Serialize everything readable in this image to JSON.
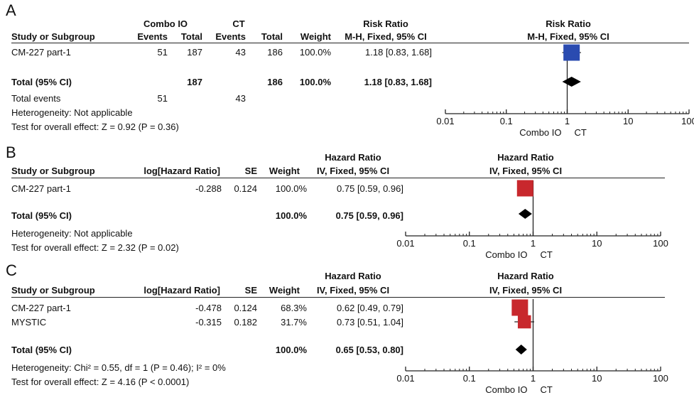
{
  "panels": [
    {
      "letter": "A",
      "header": {
        "group1": "Combo IO",
        "group2": "CT",
        "study": "Study or Subgroup",
        "events1": "Events",
        "total1": "Total",
        "events2": "Events",
        "total2": "Total",
        "weight": "Weight",
        "effect_top": "Risk Ratio",
        "effect_bottom": "M-H, Fixed, 95% CI",
        "plot_top": "Risk Ratio",
        "plot_bottom": "M-H, Fixed, 95% CI"
      },
      "rows": [
        {
          "name": "CM-227 part-1",
          "events1": "51",
          "total1": "187",
          "events2": "43",
          "total2": "186",
          "weight": "100.0%",
          "ci": "1.18 [0.83, 1.68]"
        }
      ],
      "total": {
        "name": "Total (95% CI)",
        "total1": "187",
        "total2": "186",
        "weight": "100.0%",
        "ci": "1.18 [0.83, 1.68]"
      },
      "total_events": {
        "label": "Total events",
        "events1": "51",
        "events2": "43"
      },
      "heterogeneity": "Heterogeneity: Not applicable",
      "overall": "Test for overall effect: Z = 0.92 (P = 0.36)"
    },
    {
      "letter": "B",
      "header": {
        "study": "Study or Subgroup",
        "loghr": "log[Hazard Ratio]",
        "se": "SE",
        "weight": "Weight",
        "effect_top": "Hazard Ratio",
        "effect_bottom": "IV, Fixed, 95% CI",
        "plot_top": "Hazard Ratio",
        "plot_bottom": "IV, Fixed, 95% CI"
      },
      "rows": [
        {
          "name": "CM-227 part-1",
          "loghr": "-0.288",
          "se": "0.124",
          "weight": "100.0%",
          "ci": "0.75 [0.59, 0.96]"
        }
      ],
      "total": {
        "name": "Total (95% CI)",
        "weight": "100.0%",
        "ci": "0.75 [0.59, 0.96]"
      },
      "heterogeneity": "Heterogeneity: Not applicable",
      "overall": "Test for overall effect: Z = 2.32 (P = 0.02)"
    },
    {
      "letter": "C",
      "header": {
        "study": "Study or Subgroup",
        "loghr": "log[Hazard Ratio]",
        "se": "SE",
        "weight": "Weight",
        "effect_top": "Hazard Ratio",
        "effect_bottom": "IV, Fixed, 95% CI",
        "plot_top": "Hazard Ratio",
        "plot_bottom": "IV, Fixed, 95% CI"
      },
      "rows": [
        {
          "name": "CM-227 part-1",
          "loghr": "-0.478",
          "se": "0.124",
          "weight": "68.3%",
          "ci": "0.62 [0.49, 0.79]"
        },
        {
          "name": "MYSTIC",
          "loghr": "-0.315",
          "se": "0.182",
          "weight": "31.7%",
          "ci": "0.73 [0.51, 1.04]"
        }
      ],
      "total": {
        "name": "Total (95% CI)",
        "weight": "100.0%",
        "ci": "0.65 [0.53, 0.80]"
      },
      "heterogeneity": "Heterogeneity: Chi² = 0.55, df = 1 (P = 0.46); I² = 0%",
      "overall": "Test for overall effect: Z = 4.16 (P < 0.0001)"
    }
  ],
  "chart_data": [
    {
      "type": "forest",
      "scale": "log",
      "xlim": [
        0.01,
        100
      ],
      "ticks": [
        "0.01",
        "0.1",
        "1",
        "10",
        "100"
      ],
      "favours_left": "Combo IO",
      "favours_right": "CT",
      "square_color": "#2a4bb0",
      "studies": [
        {
          "name": "CM-227 part-1",
          "estimate": 1.18,
          "lower": 0.83,
          "upper": 1.68,
          "weight": 100.0
        }
      ],
      "pooled": {
        "estimate": 1.18,
        "lower": 0.83,
        "upper": 1.68
      }
    },
    {
      "type": "forest",
      "scale": "log",
      "xlim": [
        0.01,
        100
      ],
      "ticks": [
        "0.01",
        "0.1",
        "1",
        "10",
        "100"
      ],
      "favours_left": "Combo IO",
      "favours_right": "CT",
      "square_color": "#c8282d",
      "studies": [
        {
          "name": "CM-227 part-1",
          "estimate": 0.75,
          "lower": 0.59,
          "upper": 0.96,
          "weight": 100.0
        }
      ],
      "pooled": {
        "estimate": 0.75,
        "lower": 0.59,
        "upper": 0.96
      }
    },
    {
      "type": "forest",
      "scale": "log",
      "xlim": [
        0.01,
        100
      ],
      "ticks": [
        "0.01",
        "0.1",
        "1",
        "10",
        "100"
      ],
      "favours_left": "Combo IO",
      "favours_right": "CT",
      "square_color": "#c8282d",
      "studies": [
        {
          "name": "CM-227 part-1",
          "estimate": 0.62,
          "lower": 0.49,
          "upper": 0.79,
          "weight": 68.3
        },
        {
          "name": "MYSTIC",
          "estimate": 0.73,
          "lower": 0.51,
          "upper": 1.04,
          "weight": 31.7
        }
      ],
      "pooled": {
        "estimate": 0.65,
        "lower": 0.53,
        "upper": 0.8
      }
    }
  ]
}
